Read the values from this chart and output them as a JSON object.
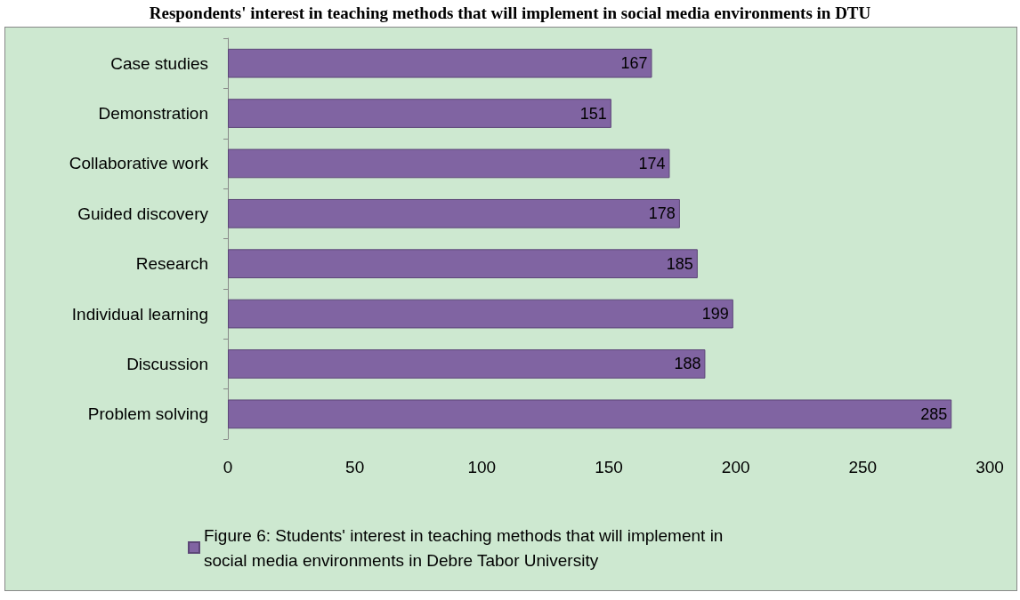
{
  "chart_data": {
    "type": "bar",
    "orientation": "horizontal",
    "title": "Respondents' interest in teaching methods that will implement in social media environments in DTU",
    "categories": [
      "Case studies",
      "Demonstration",
      "Collaborative work",
      "Guided discovery",
      "Research",
      "Individual learning",
      "Discussion",
      "Problem solving"
    ],
    "series": [
      {
        "name": "Figure 6: Students' interest in teaching methods that will implement in social media environments in Debre Tabor University",
        "color": "#8064a2",
        "values": [
          167,
          151,
          174,
          178,
          185,
          199,
          188,
          285
        ]
      }
    ],
    "xlim": [
      0,
      300
    ],
    "xticks": [
      0,
      50,
      100,
      150,
      200,
      250,
      300
    ],
    "grid": false,
    "data_labels": true,
    "legend": "bottom"
  }
}
